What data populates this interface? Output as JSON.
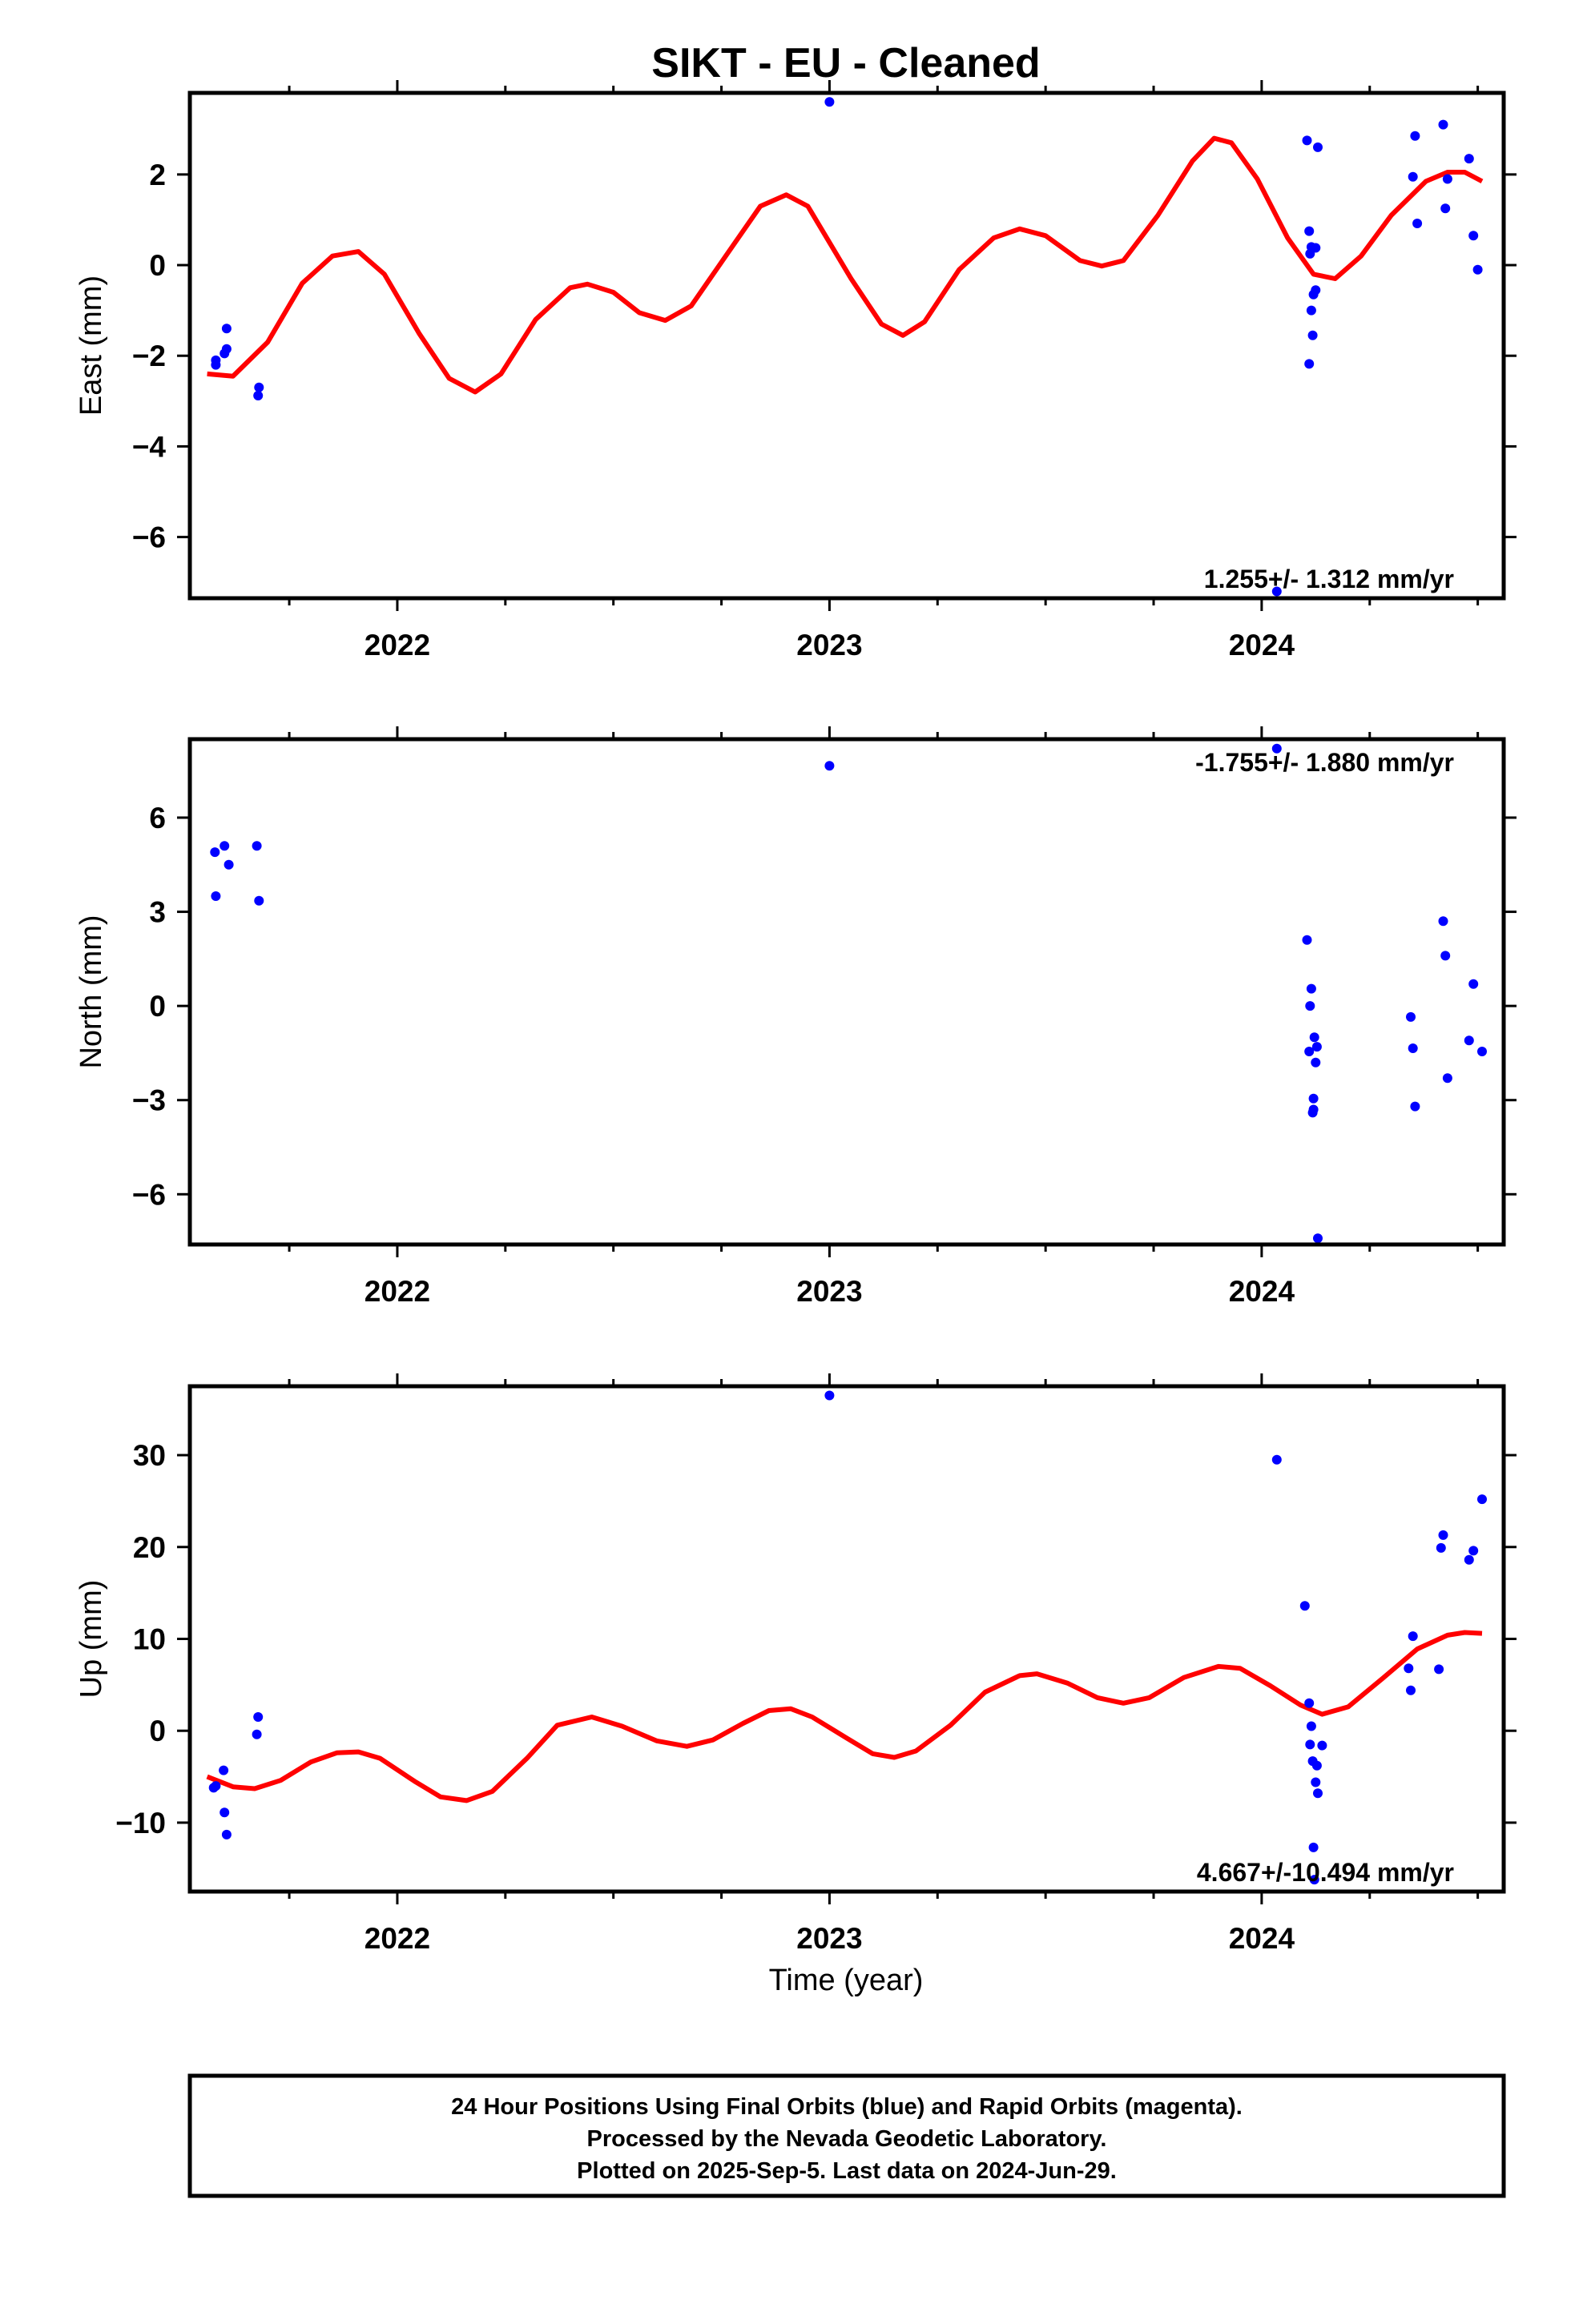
{
  "title": "SIKT  - EU - Cleaned",
  "xlabel": "Time (year)",
  "colors": {
    "final_orbits": "#0000ff",
    "fit_curve": "#ff0000",
    "frame": "#000000"
  },
  "footer": {
    "line1": "24 Hour Positions Using Final Orbits (blue) and Rapid Orbits (magenta).",
    "line2": "Processed by the Nevada Geodetic Laboratory.",
    "line3": "Plotted on 2025-Sep-5. Last data on 2024-Jun-29."
  },
  "chart_data": [
    {
      "type": "scatter",
      "ylabel": "East (mm)",
      "xlim": [
        2021.52,
        2024.56
      ],
      "ylim": [
        -7.35,
        3.8
      ],
      "xticks": [
        2022,
        2023,
        2024
      ],
      "yticks": [
        2,
        0,
        -2,
        -4,
        -6
      ],
      "rate_text": "1.255+/- 1.312 mm/yr",
      "rate_position": "bottom-right",
      "points": [
        [
          2021.58,
          -2.1
        ],
        [
          2021.58,
          -2.2
        ],
        [
          2021.605,
          -1.4
        ],
        [
          2021.605,
          -1.85
        ],
        [
          2021.6,
          -1.95
        ],
        [
          2021.68,
          -2.7
        ],
        [
          2021.678,
          -2.88
        ],
        [
          2023.0,
          3.6
        ],
        [
          2024.035,
          -7.2
        ],
        [
          2024.105,
          2.75
        ],
        [
          2024.11,
          0.75
        ],
        [
          2024.11,
          -2.18
        ],
        [
          2024.112,
          0.25
        ],
        [
          2024.115,
          0.4
        ],
        [
          2024.115,
          -1.0
        ],
        [
          2024.118,
          -1.55
        ],
        [
          2024.12,
          -0.65
        ],
        [
          2024.125,
          0.38
        ],
        [
          2024.125,
          -0.55
        ],
        [
          2024.13,
          2.6
        ],
        [
          2024.35,
          1.95
        ],
        [
          2024.355,
          2.85
        ],
        [
          2024.36,
          0.92
        ],
        [
          2024.42,
          3.1
        ],
        [
          2024.425,
          1.25
        ],
        [
          2024.43,
          1.9
        ],
        [
          2024.48,
          2.35
        ],
        [
          2024.49,
          0.65
        ],
        [
          2024.5,
          -0.1
        ]
      ],
      "curve": [
        [
          2021.56,
          -2.4
        ],
        [
          2021.62,
          -2.45
        ],
        [
          2021.7,
          -1.7
        ],
        [
          2021.78,
          -0.4
        ],
        [
          2021.85,
          0.2
        ],
        [
          2021.91,
          0.3
        ],
        [
          2021.97,
          -0.2
        ],
        [
          2022.05,
          -1.5
        ],
        [
          2022.12,
          -2.5
        ],
        [
          2022.18,
          -2.8
        ],
        [
          2022.24,
          -2.4
        ],
        [
          2022.32,
          -1.2
        ],
        [
          2022.4,
          -0.5
        ],
        [
          2022.44,
          -0.42
        ],
        [
          2022.5,
          -0.6
        ],
        [
          2022.56,
          -1.05
        ],
        [
          2022.62,
          -1.22
        ],
        [
          2022.68,
          -0.9
        ],
        [
          2022.76,
          0.2
        ],
        [
          2022.84,
          1.3
        ],
        [
          2022.9,
          1.55
        ],
        [
          2022.95,
          1.3
        ],
        [
          2023.05,
          -0.3
        ],
        [
          2023.12,
          -1.3
        ],
        [
          2023.17,
          -1.55
        ],
        [
          2023.22,
          -1.25
        ],
        [
          2023.3,
          -0.1
        ],
        [
          2023.38,
          0.6
        ],
        [
          2023.44,
          0.8
        ],
        [
          2023.5,
          0.65
        ],
        [
          2023.58,
          0.1
        ],
        [
          2023.63,
          -0.02
        ],
        [
          2023.68,
          0.1
        ],
        [
          2023.76,
          1.1
        ],
        [
          2023.84,
          2.3
        ],
        [
          2023.89,
          2.8
        ],
        [
          2023.93,
          2.7
        ],
        [
          2023.99,
          1.9
        ],
        [
          2024.06,
          0.6
        ],
        [
          2024.12,
          -0.2
        ],
        [
          2024.17,
          -0.3
        ],
        [
          2024.23,
          0.2
        ],
        [
          2024.3,
          1.1
        ],
        [
          2024.38,
          1.85
        ],
        [
          2024.43,
          2.05
        ],
        [
          2024.47,
          2.05
        ],
        [
          2024.51,
          1.85
        ]
      ]
    },
    {
      "type": "scatter",
      "ylabel": "North (mm)",
      "xlim": [
        2021.52,
        2024.56
      ],
      "ylim": [
        -7.6,
        8.5
      ],
      "xticks": [
        2022,
        2023,
        2024
      ],
      "yticks": [
        6,
        3,
        0,
        -3,
        -6
      ],
      "rate_text": "-1.755+/- 1.880 mm/yr",
      "rate_position": "top-right",
      "points": [
        [
          2021.578,
          4.9
        ],
        [
          2021.58,
          3.5
        ],
        [
          2021.6,
          5.1
        ],
        [
          2021.61,
          4.5
        ],
        [
          2021.675,
          5.1
        ],
        [
          2021.68,
          3.35
        ],
        [
          2023.0,
          7.65
        ],
        [
          2024.035,
          8.2
        ],
        [
          2024.105,
          2.1
        ],
        [
          2024.11,
          -1.45
        ],
        [
          2024.112,
          0.0
        ],
        [
          2024.115,
          0.55
        ],
        [
          2024.118,
          -3.4
        ],
        [
          2024.12,
          -2.95
        ],
        [
          2024.12,
          -3.3
        ],
        [
          2024.122,
          -1.0
        ],
        [
          2024.125,
          -1.8
        ],
        [
          2024.128,
          -1.3
        ],
        [
          2024.13,
          -7.4
        ],
        [
          2024.345,
          -0.35
        ],
        [
          2024.35,
          -1.35
        ],
        [
          2024.355,
          -3.2
        ],
        [
          2024.42,
          2.7
        ],
        [
          2024.425,
          1.6
        ],
        [
          2024.43,
          -2.3
        ],
        [
          2024.48,
          -1.1
        ],
        [
          2024.49,
          0.7
        ],
        [
          2024.51,
          -1.45
        ]
      ]
    },
    {
      "type": "scatter",
      "ylabel": "Up (mm)",
      "xlim": [
        2021.52,
        2024.56
      ],
      "ylim": [
        -17.5,
        37.5
      ],
      "xticks": [
        2022,
        2023,
        2024
      ],
      "yticks": [
        30,
        20,
        10,
        0,
        -10
      ],
      "rate_text": "4.667+/-10.494 mm/yr",
      "rate_position": "bottom-right",
      "points": [
        [
          2021.575,
          -6.2
        ],
        [
          2021.58,
          -6.0
        ],
        [
          2021.598,
          -4.3
        ],
        [
          2021.6,
          -8.9
        ],
        [
          2021.605,
          -11.3
        ],
        [
          2021.675,
          -0.4
        ],
        [
          2021.678,
          1.5
        ],
        [
          2023.0,
          36.5
        ],
        [
          2024.035,
          29.5
        ],
        [
          2024.1,
          13.6
        ],
        [
          2024.11,
          3.0
        ],
        [
          2024.112,
          -1.5
        ],
        [
          2024.115,
          0.5
        ],
        [
          2024.118,
          -3.3
        ],
        [
          2024.12,
          -12.7
        ],
        [
          2024.122,
          -16.2
        ],
        [
          2024.125,
          -5.6
        ],
        [
          2024.128,
          -3.8
        ],
        [
          2024.13,
          -6.8
        ],
        [
          2024.14,
          -1.6
        ],
        [
          2024.34,
          6.8
        ],
        [
          2024.345,
          4.4
        ],
        [
          2024.35,
          10.3
        ],
        [
          2024.41,
          6.7
        ],
        [
          2024.415,
          19.9
        ],
        [
          2024.42,
          21.3
        ],
        [
          2024.48,
          18.6
        ],
        [
          2024.49,
          19.6
        ],
        [
          2024.51,
          25.2
        ]
      ],
      "curve": [
        [
          2021.56,
          -5.0
        ],
        [
          2021.62,
          -6.1
        ],
        [
          2021.67,
          -6.3
        ],
        [
          2021.73,
          -5.4
        ],
        [
          2021.8,
          -3.4
        ],
        [
          2021.86,
          -2.4
        ],
        [
          2021.91,
          -2.3
        ],
        [
          2021.96,
          -3.0
        ],
        [
          2022.04,
          -5.5
        ],
        [
          2022.1,
          -7.2
        ],
        [
          2022.16,
          -7.6
        ],
        [
          2022.22,
          -6.6
        ],
        [
          2022.3,
          -3.0
        ],
        [
          2022.37,
          0.6
        ],
        [
          2022.45,
          1.5
        ],
        [
          2022.52,
          0.5
        ],
        [
          2022.6,
          -1.1
        ],
        [
          2022.67,
          -1.7
        ],
        [
          2022.73,
          -1.0
        ],
        [
          2022.8,
          0.8
        ],
        [
          2022.86,
          2.2
        ],
        [
          2022.91,
          2.4
        ],
        [
          2022.96,
          1.5
        ],
        [
          2023.04,
          -0.8
        ],
        [
          2023.1,
          -2.5
        ],
        [
          2023.15,
          -2.9
        ],
        [
          2023.2,
          -2.2
        ],
        [
          2023.28,
          0.6
        ],
        [
          2023.36,
          4.2
        ],
        [
          2023.44,
          6.0
        ],
        [
          2023.48,
          6.2
        ],
        [
          2023.55,
          5.2
        ],
        [
          2023.62,
          3.6
        ],
        [
          2023.68,
          3.0
        ],
        [
          2023.74,
          3.6
        ],
        [
          2023.82,
          5.8
        ],
        [
          2023.9,
          7.0
        ],
        [
          2023.95,
          6.8
        ],
        [
          2024.02,
          4.9
        ],
        [
          2024.09,
          2.8
        ],
        [
          2024.14,
          1.8
        ],
        [
          2024.2,
          2.6
        ],
        [
          2024.28,
          5.7
        ],
        [
          2024.36,
          8.9
        ],
        [
          2024.43,
          10.4
        ],
        [
          2024.47,
          10.7
        ],
        [
          2024.51,
          10.6
        ]
      ]
    }
  ]
}
